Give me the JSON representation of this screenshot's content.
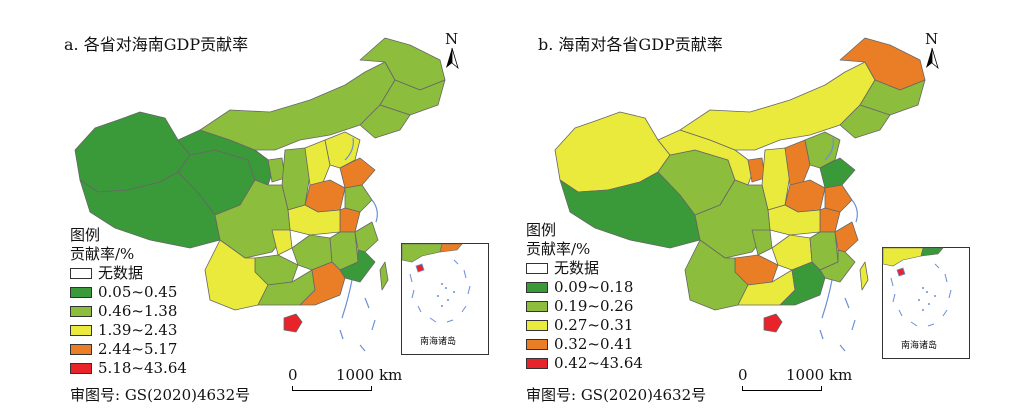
{
  "colors": {
    "none": "#ffffff",
    "dark_green": "#3a9a3a",
    "light_green": "#8cbd3c",
    "yellow": "#eaea3c",
    "orange": "#ea7e26",
    "red": "#e8242a",
    "border": "#666666",
    "water": "#6b8fd6"
  },
  "panels": [
    {
      "title": "a. 各省对海南GDP贡献率",
      "legend": {
        "heading": "图例",
        "subheading": "贡献率/%",
        "items": [
          {
            "label": "无数据",
            "color": "#ffffff"
          },
          {
            "label": "0.05~0.45",
            "color": "#3a9a3a"
          },
          {
            "label": "0.46~1.38",
            "color": "#8cbd3c"
          },
          {
            "label": "1.39~2.43",
            "color": "#eaea3c"
          },
          {
            "label": "2.44~5.17",
            "color": "#ea7e26"
          },
          {
            "label": "5.18~43.64",
            "color": "#e8242a"
          }
        ]
      },
      "approval": "审图号: GS(2020)4632号",
      "scale": {
        "zero": "0",
        "distance": "1000 km"
      },
      "north": "N",
      "inset_label": "南海诸岛"
    },
    {
      "title": "b. 海南对各省GDP贡献率",
      "legend": {
        "heading": "图例",
        "subheading": "贡献率/%",
        "items": [
          {
            "label": "无数据",
            "color": "#ffffff"
          },
          {
            "label": "0.09~0.18",
            "color": "#3a9a3a"
          },
          {
            "label": "0.19~0.26",
            "color": "#8cbd3c"
          },
          {
            "label": "0.27~0.31",
            "color": "#eaea3c"
          },
          {
            "label": "0.32~0.41",
            "color": "#ea7e26"
          },
          {
            "label": "0.42~43.64",
            "color": "#e8242a"
          }
        ]
      },
      "approval": "审图号: GS(2020)4632号",
      "scale": {
        "zero": "0",
        "distance": "1000 km"
      },
      "north": "N",
      "inset_label": "南海诸岛"
    }
  ]
}
